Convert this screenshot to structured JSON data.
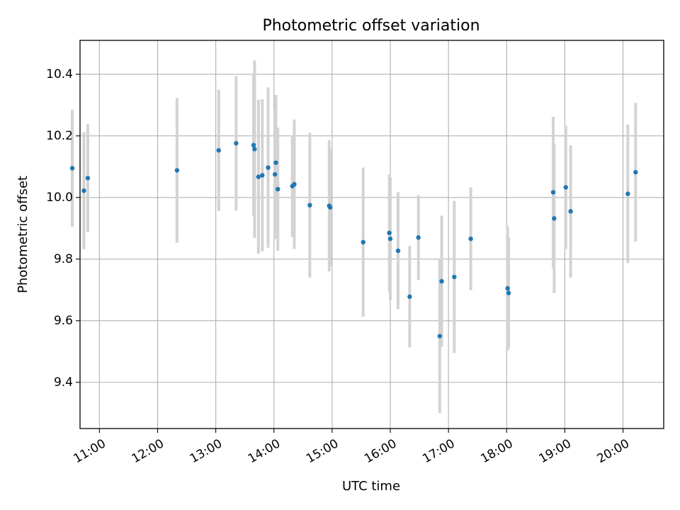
{
  "chart_data": {
    "type": "scatter",
    "title": "Photometric offset variation",
    "xlabel": "UTC time",
    "ylabel": "Photometric offset",
    "x_axis_kind": "time",
    "xlim": [
      "10:40",
      "20:42"
    ],
    "ylim": [
      9.25,
      10.51
    ],
    "x_ticks": [
      "11:00",
      "12:00",
      "13:00",
      "14:00",
      "15:00",
      "16:00",
      "17:00",
      "18:00",
      "19:00",
      "20:00"
    ],
    "y_ticks": [
      9.4,
      9.6,
      9.8,
      10.0,
      10.2,
      10.4
    ],
    "y_tick_labels": [
      "9.4",
      "9.6",
      "9.8",
      "10.0",
      "10.2",
      "10.4"
    ],
    "grid": true,
    "colors": {
      "marker": "#1f77b4",
      "error_bar": "#d3d3d3",
      "grid": "#b0b0b0"
    },
    "points": [
      {
        "time": "10:32",
        "y": 10.095,
        "yerr": 0.19
      },
      {
        "time": "10:44",
        "y": 10.022,
        "yerr": 0.19
      },
      {
        "time": "10:48",
        "y": 10.063,
        "yerr": 0.175
      },
      {
        "time": "12:20",
        "y": 10.088,
        "yerr": 0.235
      },
      {
        "time": "13:03",
        "y": 10.153,
        "yerr": 0.197
      },
      {
        "time": "13:21",
        "y": 10.176,
        "yerr": 0.218
      },
      {
        "time": "13:39",
        "y": 10.17,
        "yerr": 0.23
      },
      {
        "time": "13:40",
        "y": 10.157,
        "yerr": 0.288
      },
      {
        "time": "13:44",
        "y": 10.067,
        "yerr": 0.25
      },
      {
        "time": "13:48",
        "y": 10.072,
        "yerr": 0.247
      },
      {
        "time": "13:54",
        "y": 10.097,
        "yerr": 0.26
      },
      {
        "time": "14:01",
        "y": 10.075,
        "yerr": 0.21
      },
      {
        "time": "14:02",
        "y": 10.113,
        "yerr": 0.22
      },
      {
        "time": "14:04",
        "y": 10.027,
        "yerr": 0.2
      },
      {
        "time": "14:19",
        "y": 10.037,
        "yerr": 0.165
      },
      {
        "time": "14:21",
        "y": 10.043,
        "yerr": 0.21
      },
      {
        "time": "14:37",
        "y": 9.975,
        "yerr": 0.235
      },
      {
        "time": "14:57",
        "y": 9.973,
        "yerr": 0.213
      },
      {
        "time": "14:58",
        "y": 9.968,
        "yerr": 0.19
      },
      {
        "time": "15:32",
        "y": 9.855,
        "yerr": 0.242
      },
      {
        "time": "15:59",
        "y": 9.885,
        "yerr": 0.19
      },
      {
        "time": "16:00",
        "y": 9.866,
        "yerr": 0.2
      },
      {
        "time": "16:08",
        "y": 9.827,
        "yerr": 0.19
      },
      {
        "time": "16:20",
        "y": 9.678,
        "yerr": 0.165
      },
      {
        "time": "16:29",
        "y": 9.87,
        "yerr": 0.138
      },
      {
        "time": "16:51",
        "y": 9.55,
        "yerr": 0.25
      },
      {
        "time": "16:53",
        "y": 9.728,
        "yerr": 0.213
      },
      {
        "time": "17:06",
        "y": 9.742,
        "yerr": 0.247
      },
      {
        "time": "17:23",
        "y": 9.866,
        "yerr": 0.167
      },
      {
        "time": "18:01",
        "y": 9.705,
        "yerr": 0.202
      },
      {
        "time": "18:02",
        "y": 9.69,
        "yerr": 0.18
      },
      {
        "time": "18:48",
        "y": 10.017,
        "yerr": 0.245
      },
      {
        "time": "18:49",
        "y": 9.932,
        "yerr": 0.242
      },
      {
        "time": "19:01",
        "y": 10.033,
        "yerr": 0.2
      },
      {
        "time": "19:06",
        "y": 9.955,
        "yerr": 0.215
      },
      {
        "time": "20:05",
        "y": 10.012,
        "yerr": 0.225
      },
      {
        "time": "20:13",
        "y": 10.082,
        "yerr": 0.225
      }
    ]
  }
}
